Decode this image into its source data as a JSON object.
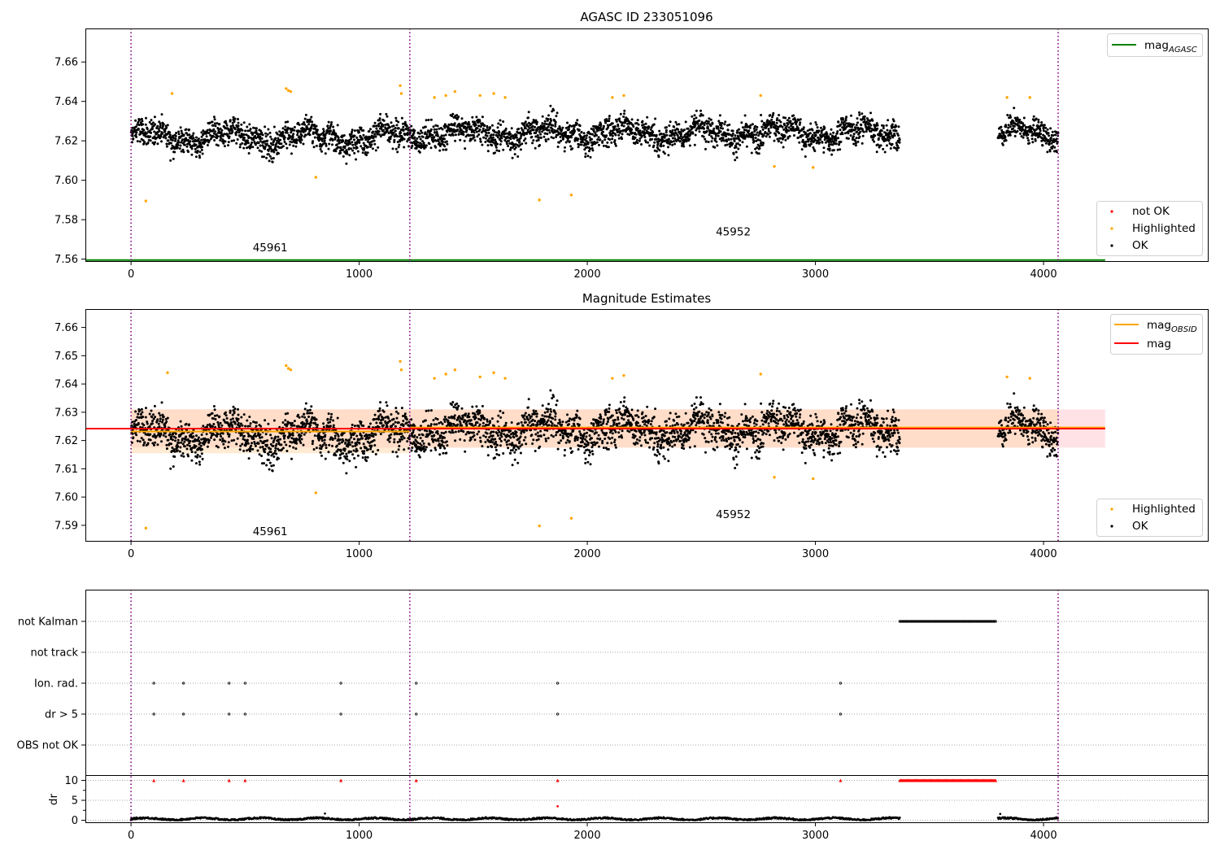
{
  "figure": {
    "colors": {
      "ok": "#000000",
      "highlighted": "#ffa500",
      "not_ok": "#ff0000",
      "mag_agasc": "#008000",
      "mag_obsid": "#ffa500",
      "mag": "#ff0000",
      "obs_line": "#800080",
      "band_mag": "#ffb6c1",
      "band_obsid": "#ffd8b0"
    }
  },
  "chart_data": [
    {
      "type": "scatter",
      "title": "AGASC ID 233051096",
      "xlim": [
        -200,
        4720
      ],
      "ylim": [
        7.559,
        7.677
      ],
      "xticks": [
        0,
        1000,
        2000,
        3000,
        4000
      ],
      "yticks": [
        7.56,
        7.58,
        7.6,
        7.62,
        7.64,
        7.66
      ],
      "ytick_labels": [
        "7.56",
        "7.58",
        "7.60",
        "7.62",
        "7.64",
        "7.66"
      ],
      "obs_boundaries": [
        0,
        1222,
        4064
      ],
      "obs_labels": [
        {
          "text": "45961",
          "x": 610,
          "y": 7.564
        },
        {
          "text": "45952",
          "x": 2640,
          "y": 7.572
        }
      ],
      "segments": [
        {
          "x_start": 0,
          "x_end": 1222,
          "center": 7.622,
          "spread": 0.0065
        },
        {
          "x_start": 1222,
          "x_end": 3370,
          "center": 7.624,
          "spread": 0.0065
        },
        {
          "x_start": 3800,
          "x_end": 4064,
          "center": 7.624,
          "spread": 0.0055
        }
      ],
      "highlighted_points": [
        [
          65,
          7.5895
        ],
        [
          180,
          7.644
        ],
        [
          680,
          7.6465
        ],
        [
          690,
          7.6455
        ],
        [
          700,
          7.645
        ],
        [
          810,
          7.6015
        ],
        [
          1180,
          7.648
        ],
        [
          1185,
          7.644
        ],
        [
          1330,
          7.642
        ],
        [
          1380,
          7.643
        ],
        [
          1420,
          7.645
        ],
        [
          1530,
          7.643
        ],
        [
          1590,
          7.644
        ],
        [
          1640,
          7.642
        ],
        [
          1790,
          7.59
        ],
        [
          1930,
          7.5925
        ],
        [
          2110,
          7.642
        ],
        [
          2160,
          7.643
        ],
        [
          2760,
          7.643
        ],
        [
          2820,
          7.607
        ],
        [
          2990,
          7.6065
        ],
        [
          3840,
          7.642
        ],
        [
          3940,
          7.642
        ]
      ],
      "not_ok_points": [],
      "series": [
        {
          "name": "mag_AGASC",
          "value": 7.5595,
          "x_range": [
            -200,
            4270
          ]
        }
      ],
      "legend_lines": [
        {
          "name": "mag",
          "sub": "AGASC"
        }
      ],
      "legend_points": [
        "not OK",
        "Highlighted",
        "OK"
      ]
    },
    {
      "type": "scatter",
      "title": "Magnitude Estimates",
      "xlim": [
        -200,
        4720
      ],
      "ylim": [
        7.5845,
        7.6665
      ],
      "xticks": [
        0,
        1000,
        2000,
        3000,
        4000
      ],
      "yticks": [
        7.59,
        7.6,
        7.61,
        7.62,
        7.63,
        7.64,
        7.65,
        7.66
      ],
      "ytick_labels": [
        "7.59",
        "7.60",
        "7.61",
        "7.62",
        "7.63",
        "7.64",
        "7.65",
        "7.66"
      ],
      "obs_boundaries": [
        0,
        1222,
        4064
      ],
      "obs_labels": [
        {
          "text": "45961",
          "x": 610,
          "y": 7.5865
        },
        {
          "text": "45952",
          "x": 2640,
          "y": 7.5925
        }
      ],
      "mag": 7.6242,
      "mag_band": [
        7.6175,
        7.631
      ],
      "mag_x_range": [
        0,
        4270
      ],
      "obsid_mags": [
        {
          "x_range": [
            0,
            1222
          ],
          "value": 7.6232,
          "band": [
            7.6155,
            7.631
          ]
        },
        {
          "x_range": [
            1222,
            4270
          ],
          "value": 7.6246,
          "band": [
            7.6175,
            7.631
          ]
        }
      ],
      "highlighted_points": [
        [
          65,
          7.589
        ],
        [
          160,
          7.644
        ],
        [
          680,
          7.6465
        ],
        [
          690,
          7.6455
        ],
        [
          700,
          7.645
        ],
        [
          810,
          7.6015
        ],
        [
          1180,
          7.648
        ],
        [
          1185,
          7.645
        ],
        [
          1330,
          7.642
        ],
        [
          1380,
          7.6435
        ],
        [
          1420,
          7.645
        ],
        [
          1530,
          7.6425
        ],
        [
          1590,
          7.644
        ],
        [
          1640,
          7.642
        ],
        [
          1790,
          7.5898
        ],
        [
          1930,
          7.5925
        ],
        [
          2110,
          7.642
        ],
        [
          2160,
          7.643
        ],
        [
          2760,
          7.6435
        ],
        [
          2820,
          7.607
        ],
        [
          2990,
          7.6065
        ],
        [
          3840,
          7.6425
        ],
        [
          3940,
          7.642
        ]
      ],
      "series": [
        {
          "name": "mag_OBSID"
        },
        {
          "name": "mag"
        }
      ],
      "legend_lines": [
        {
          "name": "mag",
          "sub": "OBSID"
        },
        {
          "name": "mag",
          "sub": ""
        }
      ],
      "legend_points": [
        "Highlighted",
        "OK"
      ]
    },
    {
      "type": "scatter",
      "title": "",
      "xlim": [
        -200,
        4720
      ],
      "xticks": [
        0,
        1000,
        2000,
        3000,
        4000
      ],
      "obs_boundaries": [
        0,
        1222,
        4064
      ],
      "flag_rows": [
        "not Kalman",
        "not track",
        "Ion. rad.",
        "dr > 5",
        "OBS not OK"
      ],
      "flags": {
        "not Kalman": {
          "x_range": [
            3370,
            3790
          ]
        },
        "not track": {
          "x": []
        },
        "Ion. rad.": {
          "x": [
            100,
            230,
            430,
            500,
            920,
            1250,
            1870,
            3110
          ]
        },
        "dr > 5": {
          "x": [
            100,
            230,
            430,
            500,
            920,
            1250,
            1870,
            3110
          ]
        },
        "OBS not OK": {
          "x": []
        }
      },
      "dr": {
        "ylabel": "dr",
        "yticks": [
          0,
          5,
          10
        ],
        "ylim": [
          -0.5,
          10.5
        ],
        "clipped_value": 10,
        "clipped_x": [
          100,
          230,
          430,
          500,
          920,
          1250,
          1870,
          3110
        ],
        "clipped_range": [
          3370,
          3790
        ],
        "red_points": [
          [
            1870,
            3.5
          ]
        ],
        "black_points": [
          [
            850,
            1.7
          ],
          [
            3810,
            1.6
          ]
        ]
      }
    }
  ]
}
